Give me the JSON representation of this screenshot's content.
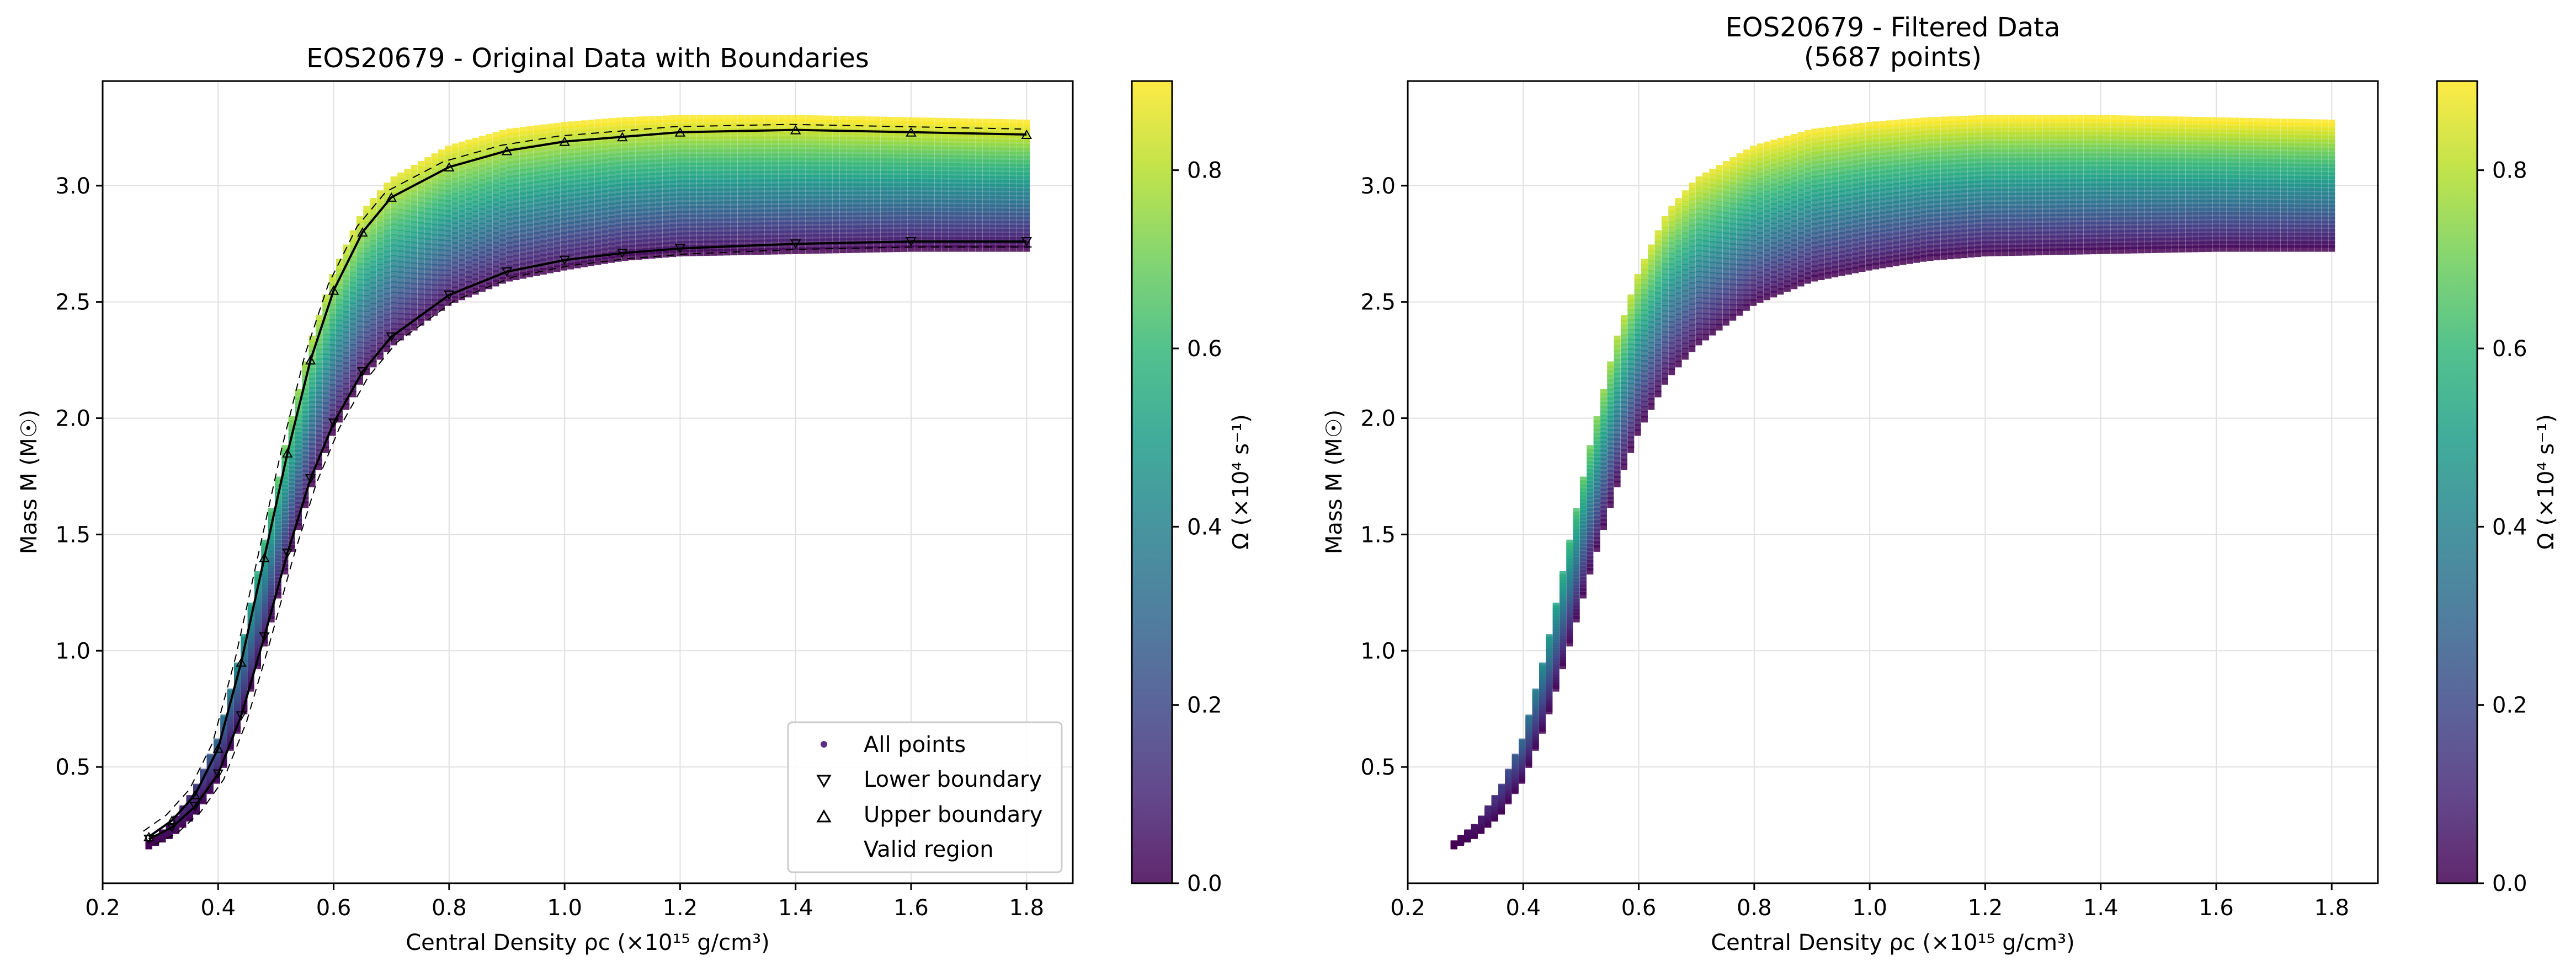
{
  "colors": {
    "viridis": [
      "#440154",
      "#482878",
      "#3e4989",
      "#31688e",
      "#26828e",
      "#1f9e89",
      "#35b779",
      "#6ece58",
      "#b5de2b",
      "#fde725"
    ],
    "boundary": "#000000",
    "grid": "#e0e0e0"
  },
  "chart_data": [
    {
      "type": "scatter",
      "title": "EOS20679 - Original Data with Boundaries",
      "xlabel": "Central Density ρc (×10¹⁵ g/cm³)",
      "ylabel": "Mass M (M☉)",
      "xlim": [
        0.2,
        1.88
      ],
      "ylim": [
        0.0,
        3.45
      ],
      "xticks": [
        0.2,
        0.4,
        0.6,
        0.8,
        1.0,
        1.2,
        1.4,
        1.6,
        1.8
      ],
      "yticks": [
        0.5,
        1.0,
        1.5,
        2.0,
        2.5,
        3.0
      ],
      "grid": true,
      "colorbar": {
        "label": "Ω (×10⁴ s⁻¹)",
        "range": [
          0.0,
          0.9
        ],
        "ticks": [
          0.0,
          0.2,
          0.4,
          0.6,
          0.8
        ],
        "colormap": "viridis"
      },
      "legend": {
        "placement": "lower-right",
        "entries": [
          "All points",
          "Lower boundary",
          "Upper boundary",
          "Valid region"
        ]
      },
      "series": [
        {
          "name": "Lower boundary",
          "x": [
            0.28,
            0.32,
            0.36,
            0.4,
            0.44,
            0.48,
            0.52,
            0.56,
            0.6,
            0.65,
            0.7,
            0.8,
            0.9,
            1.0,
            1.1,
            1.2,
            1.4,
            1.6,
            1.8
          ],
          "y": [
            0.19,
            0.24,
            0.33,
            0.47,
            0.72,
            1.06,
            1.42,
            1.74,
            1.98,
            2.2,
            2.35,
            2.53,
            2.63,
            2.68,
            2.71,
            2.73,
            2.75,
            2.76,
            2.76
          ]
        },
        {
          "name": "Upper boundary",
          "x": [
            0.28,
            0.32,
            0.36,
            0.4,
            0.44,
            0.48,
            0.52,
            0.56,
            0.6,
            0.65,
            0.7,
            0.8,
            0.9,
            1.0,
            1.1,
            1.2,
            1.4,
            1.6,
            1.8
          ],
          "y": [
            0.2,
            0.27,
            0.38,
            0.58,
            0.95,
            1.4,
            1.85,
            2.25,
            2.55,
            2.8,
            2.95,
            3.08,
            3.15,
            3.19,
            3.21,
            3.23,
            3.24,
            3.23,
            3.22
          ]
        }
      ],
      "grid_envelope": {
        "x": [
          0.28,
          0.32,
          0.36,
          0.4,
          0.44,
          0.48,
          0.52,
          0.56,
          0.6,
          0.65,
          0.7,
          0.8,
          0.9,
          1.0,
          1.1,
          1.2,
          1.4,
          1.6,
          1.8
        ],
        "y_min": [
          0.16,
          0.21,
          0.3,
          0.45,
          0.7,
          1.03,
          1.38,
          1.7,
          1.95,
          2.18,
          2.32,
          2.5,
          2.6,
          2.65,
          2.69,
          2.71,
          2.72,
          2.73,
          2.73
        ],
        "y_max": [
          0.17,
          0.25,
          0.4,
          0.62,
          1.0,
          1.46,
          1.92,
          2.32,
          2.62,
          2.88,
          3.02,
          3.16,
          3.23,
          3.26,
          3.28,
          3.29,
          3.29,
          3.28,
          3.27
        ],
        "omega_max": [
          0.0,
          0.05,
          0.15,
          0.3,
          0.45,
          0.6,
          0.7,
          0.78,
          0.82,
          0.85,
          0.86,
          0.88,
          0.89,
          0.89,
          0.9,
          0.9,
          0.9,
          0.9,
          0.9
        ]
      }
    },
    {
      "type": "scatter",
      "title": "EOS20679 - Filtered Data",
      "subtitle": "(5687 points)",
      "xlabel": "Central Density ρc (×10¹⁵ g/cm³)",
      "ylabel": "Mass M (M☉)",
      "xlim": [
        0.2,
        1.88
      ],
      "ylim": [
        0.0,
        3.45
      ],
      "xticks": [
        0.2,
        0.4,
        0.6,
        0.8,
        1.0,
        1.2,
        1.4,
        1.6,
        1.8
      ],
      "yticks": [
        0.5,
        1.0,
        1.5,
        2.0,
        2.5,
        3.0
      ],
      "grid": true,
      "colorbar": {
        "label": "Ω (×10⁴ s⁻¹)",
        "range": [
          0.0,
          0.9
        ],
        "ticks": [
          0.0,
          0.2,
          0.4,
          0.6,
          0.8
        ],
        "colormap": "viridis"
      },
      "grid_envelope": {
        "x": [
          0.28,
          0.32,
          0.36,
          0.4,
          0.44,
          0.48,
          0.52,
          0.56,
          0.6,
          0.65,
          0.7,
          0.8,
          0.9,
          1.0,
          1.1,
          1.2,
          1.4,
          1.6,
          1.8
        ],
        "y_min": [
          0.16,
          0.21,
          0.3,
          0.45,
          0.7,
          1.03,
          1.38,
          1.7,
          1.95,
          2.18,
          2.32,
          2.5,
          2.6,
          2.65,
          2.69,
          2.71,
          2.72,
          2.73,
          2.73
        ],
        "y_max": [
          0.17,
          0.25,
          0.4,
          0.62,
          1.0,
          1.46,
          1.92,
          2.32,
          2.62,
          2.88,
          3.02,
          3.16,
          3.23,
          3.26,
          3.28,
          3.29,
          3.29,
          3.28,
          3.27
        ],
        "omega_max": [
          0.0,
          0.05,
          0.15,
          0.3,
          0.45,
          0.6,
          0.7,
          0.78,
          0.82,
          0.85,
          0.86,
          0.88,
          0.89,
          0.89,
          0.9,
          0.9,
          0.9,
          0.9,
          0.9
        ]
      }
    }
  ]
}
